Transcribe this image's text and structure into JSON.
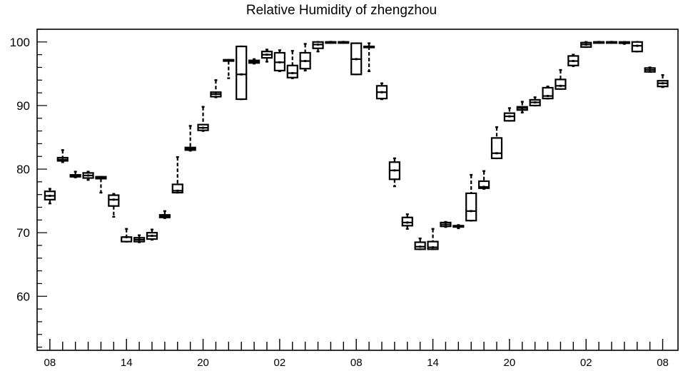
{
  "chart_data": {
    "type": "boxplot",
    "title": "Relative Humidity of zhengzhou",
    "xlabel": "",
    "ylabel": "",
    "ylim": [
      51.5,
      102
    ],
    "y_ticks": [
      60,
      70,
      80,
      90,
      100
    ],
    "x_ticks": [
      {
        "label": "08",
        "x": 0
      },
      {
        "label": "14",
        "x": 6
      },
      {
        "label": "20",
        "x": 12
      },
      {
        "label": "02",
        "x": 18
      },
      {
        "label": "08",
        "x": 24
      },
      {
        "label": "14",
        "x": 30
      },
      {
        "label": "20",
        "x": 36
      },
      {
        "label": "02",
        "x": 42
      },
      {
        "label": "08",
        "x": 48
      }
    ],
    "x_range": [
      -1.0,
      49.2
    ],
    "grid": false,
    "series": [
      {
        "boxes": [
          {
            "x": 0,
            "min": 74.6,
            "q1": 75.2,
            "median": 75.8,
            "q3": 76.5,
            "max": 76.9
          },
          {
            "x": 1,
            "min": 81.1,
            "q1": 81.3,
            "median": 81.5,
            "q3": 81.8,
            "max": 83.0
          },
          {
            "x": 2,
            "min": 78.7,
            "q1": 78.8,
            "median": 79.0,
            "q3": 79.1,
            "max": 79.6
          },
          {
            "x": 3,
            "min": 78.3,
            "q1": 78.6,
            "median": 79.0,
            "q3": 79.4,
            "max": 79.6
          },
          {
            "x": 4,
            "min": 76.3,
            "q1": 78.5,
            "median": 78.6,
            "q3": 78.8,
            "max": 78.8
          },
          {
            "x": 5,
            "min": 72.5,
            "q1": 74.2,
            "median": 75.2,
            "q3": 75.9,
            "max": 76.1
          },
          {
            "x": 6,
            "min": 68.6,
            "q1": 68.6,
            "median": 69.3,
            "q3": 69.3,
            "max": 70.6
          },
          {
            "x": 7,
            "min": 68.5,
            "q1": 68.6,
            "median": 68.9,
            "q3": 69.2,
            "max": 69.6
          },
          {
            "x": 8,
            "min": 68.9,
            "q1": 69.0,
            "median": 69.5,
            "q3": 70.0,
            "max": 70.5
          },
          {
            "x": 9,
            "min": 72.3,
            "q1": 72.4,
            "median": 72.6,
            "q3": 72.8,
            "max": 73.4
          },
          {
            "x": 10,
            "min": 76.3,
            "q1": 76.3,
            "median": 76.6,
            "q3": 77.6,
            "max": 81.9
          },
          {
            "x": 11,
            "min": 82.9,
            "q1": 83.0,
            "median": 83.2,
            "q3": 83.4,
            "max": 86.8
          },
          {
            "x": 12,
            "min": 86.0,
            "q1": 86.1,
            "median": 86.5,
            "q3": 87.0,
            "max": 89.8
          },
          {
            "x": 13,
            "min": 91.3,
            "q1": 91.4,
            "median": 91.8,
            "q3": 92.1,
            "max": 94.0
          },
          {
            "x": 14,
            "min": 94.3,
            "q1": 97.0,
            "median": 97.1,
            "q3": 97.2,
            "max": 97.2
          },
          {
            "x": 15,
            "min": 91.0,
            "q1": 91.0,
            "median": 94.9,
            "q3": 99.3,
            "max": 99.3
          },
          {
            "x": 16,
            "min": 96.6,
            "q1": 96.7,
            "median": 96.9,
            "q3": 97.1,
            "max": 97.3
          },
          {
            "x": 17,
            "min": 96.9,
            "q1": 97.5,
            "median": 98.0,
            "q3": 98.5,
            "max": 98.8
          },
          {
            "x": 18,
            "min": 95.4,
            "q1": 95.5,
            "median": 96.8,
            "q3": 98.3,
            "max": 98.7
          },
          {
            "x": 19,
            "min": 94.3,
            "q1": 94.4,
            "median": 95.1,
            "q3": 96.3,
            "max": 98.6
          },
          {
            "x": 20,
            "min": 95.5,
            "q1": 95.8,
            "median": 97.0,
            "q3": 98.3,
            "max": 99.7
          },
          {
            "x": 21,
            "min": 98.5,
            "q1": 99.0,
            "median": 99.6,
            "q3": 100.0,
            "max": 100.0
          },
          {
            "x": 22,
            "min": 100.0,
            "q1": 100.0,
            "median": 100.0,
            "q3": 100.0,
            "max": 100.0
          },
          {
            "x": 23,
            "min": 99.9,
            "q1": 100.0,
            "median": 100.0,
            "q3": 100.0,
            "max": 100.0
          },
          {
            "x": 24,
            "min": 94.9,
            "q1": 94.9,
            "median": 97.3,
            "q3": 99.8,
            "max": 99.8
          },
          {
            "x": 25,
            "min": 95.4,
            "q1": 99.3,
            "median": 99.3,
            "q3": 99.3,
            "max": 99.8
          },
          {
            "x": 26,
            "min": 91.0,
            "q1": 91.1,
            "median": 92.1,
            "q3": 93.1,
            "max": 93.5
          },
          {
            "x": 27,
            "min": 77.3,
            "q1": 78.4,
            "median": 79.8,
            "q3": 81.1,
            "max": 81.7
          },
          {
            "x": 28,
            "min": 70.6,
            "q1": 71.1,
            "median": 71.6,
            "q3": 72.4,
            "max": 72.9
          },
          {
            "x": 29,
            "min": 67.4,
            "q1": 67.4,
            "median": 67.8,
            "q3": 68.5,
            "max": 69.1
          },
          {
            "x": 30,
            "min": 67.4,
            "q1": 67.4,
            "median": 67.7,
            "q3": 68.6,
            "max": 70.6
          },
          {
            "x": 31,
            "min": 70.9,
            "q1": 71.0,
            "median": 71.3,
            "q3": 71.6,
            "max": 71.7
          },
          {
            "x": 32,
            "min": 70.7,
            "q1": 70.9,
            "median": 71.0,
            "q3": 71.1,
            "max": 71.2
          },
          {
            "x": 33,
            "min": 71.9,
            "q1": 71.9,
            "median": 73.4,
            "q3": 76.2,
            "max": 79.1
          },
          {
            "x": 34,
            "min": 76.9,
            "q1": 77.0,
            "median": 77.2,
            "q3": 78.1,
            "max": 79.7
          },
          {
            "x": 35,
            "min": 81.7,
            "q1": 81.7,
            "median": 82.5,
            "q3": 84.9,
            "max": 86.6
          },
          {
            "x": 36,
            "min": 87.6,
            "q1": 87.6,
            "median": 88.3,
            "q3": 88.8,
            "max": 89.6
          },
          {
            "x": 37,
            "min": 88.9,
            "q1": 89.3,
            "median": 89.6,
            "q3": 89.8,
            "max": 90.6
          },
          {
            "x": 38,
            "min": 90.0,
            "q1": 90.0,
            "median": 90.5,
            "q3": 90.9,
            "max": 91.3
          },
          {
            "x": 39,
            "min": 91.1,
            "q1": 91.1,
            "median": 91.5,
            "q3": 92.8,
            "max": 93.0
          },
          {
            "x": 40,
            "min": 92.6,
            "q1": 92.6,
            "median": 93.1,
            "q3": 94.1,
            "max": 95.6
          },
          {
            "x": 41,
            "min": 96.2,
            "q1": 96.3,
            "median": 97.0,
            "q3": 97.8,
            "max": 98.0
          },
          {
            "x": 42,
            "min": 99.2,
            "q1": 99.2,
            "median": 99.6,
            "q3": 99.9,
            "max": 100.0
          },
          {
            "x": 43,
            "min": 100.0,
            "q1": 100.0,
            "median": 100.0,
            "q3": 100.0,
            "max": 100.0
          },
          {
            "x": 44,
            "min": 100.0,
            "q1": 100.0,
            "median": 100.0,
            "q3": 100.0,
            "max": 100.0
          },
          {
            "x": 45,
            "min": 99.7,
            "q1": 99.8,
            "median": 99.9,
            "q3": 100.0,
            "max": 100.0
          },
          {
            "x": 46,
            "min": 98.5,
            "q1": 98.5,
            "median": 99.4,
            "q3": 100.0,
            "max": 100.0
          },
          {
            "x": 47,
            "min": 95.3,
            "q1": 95.3,
            "median": 95.6,
            "q3": 95.9,
            "max": 96.0
          },
          {
            "x": 48,
            "min": 92.9,
            "q1": 93.0,
            "median": 93.5,
            "q3": 93.9,
            "max": 94.8
          }
        ]
      }
    ]
  }
}
